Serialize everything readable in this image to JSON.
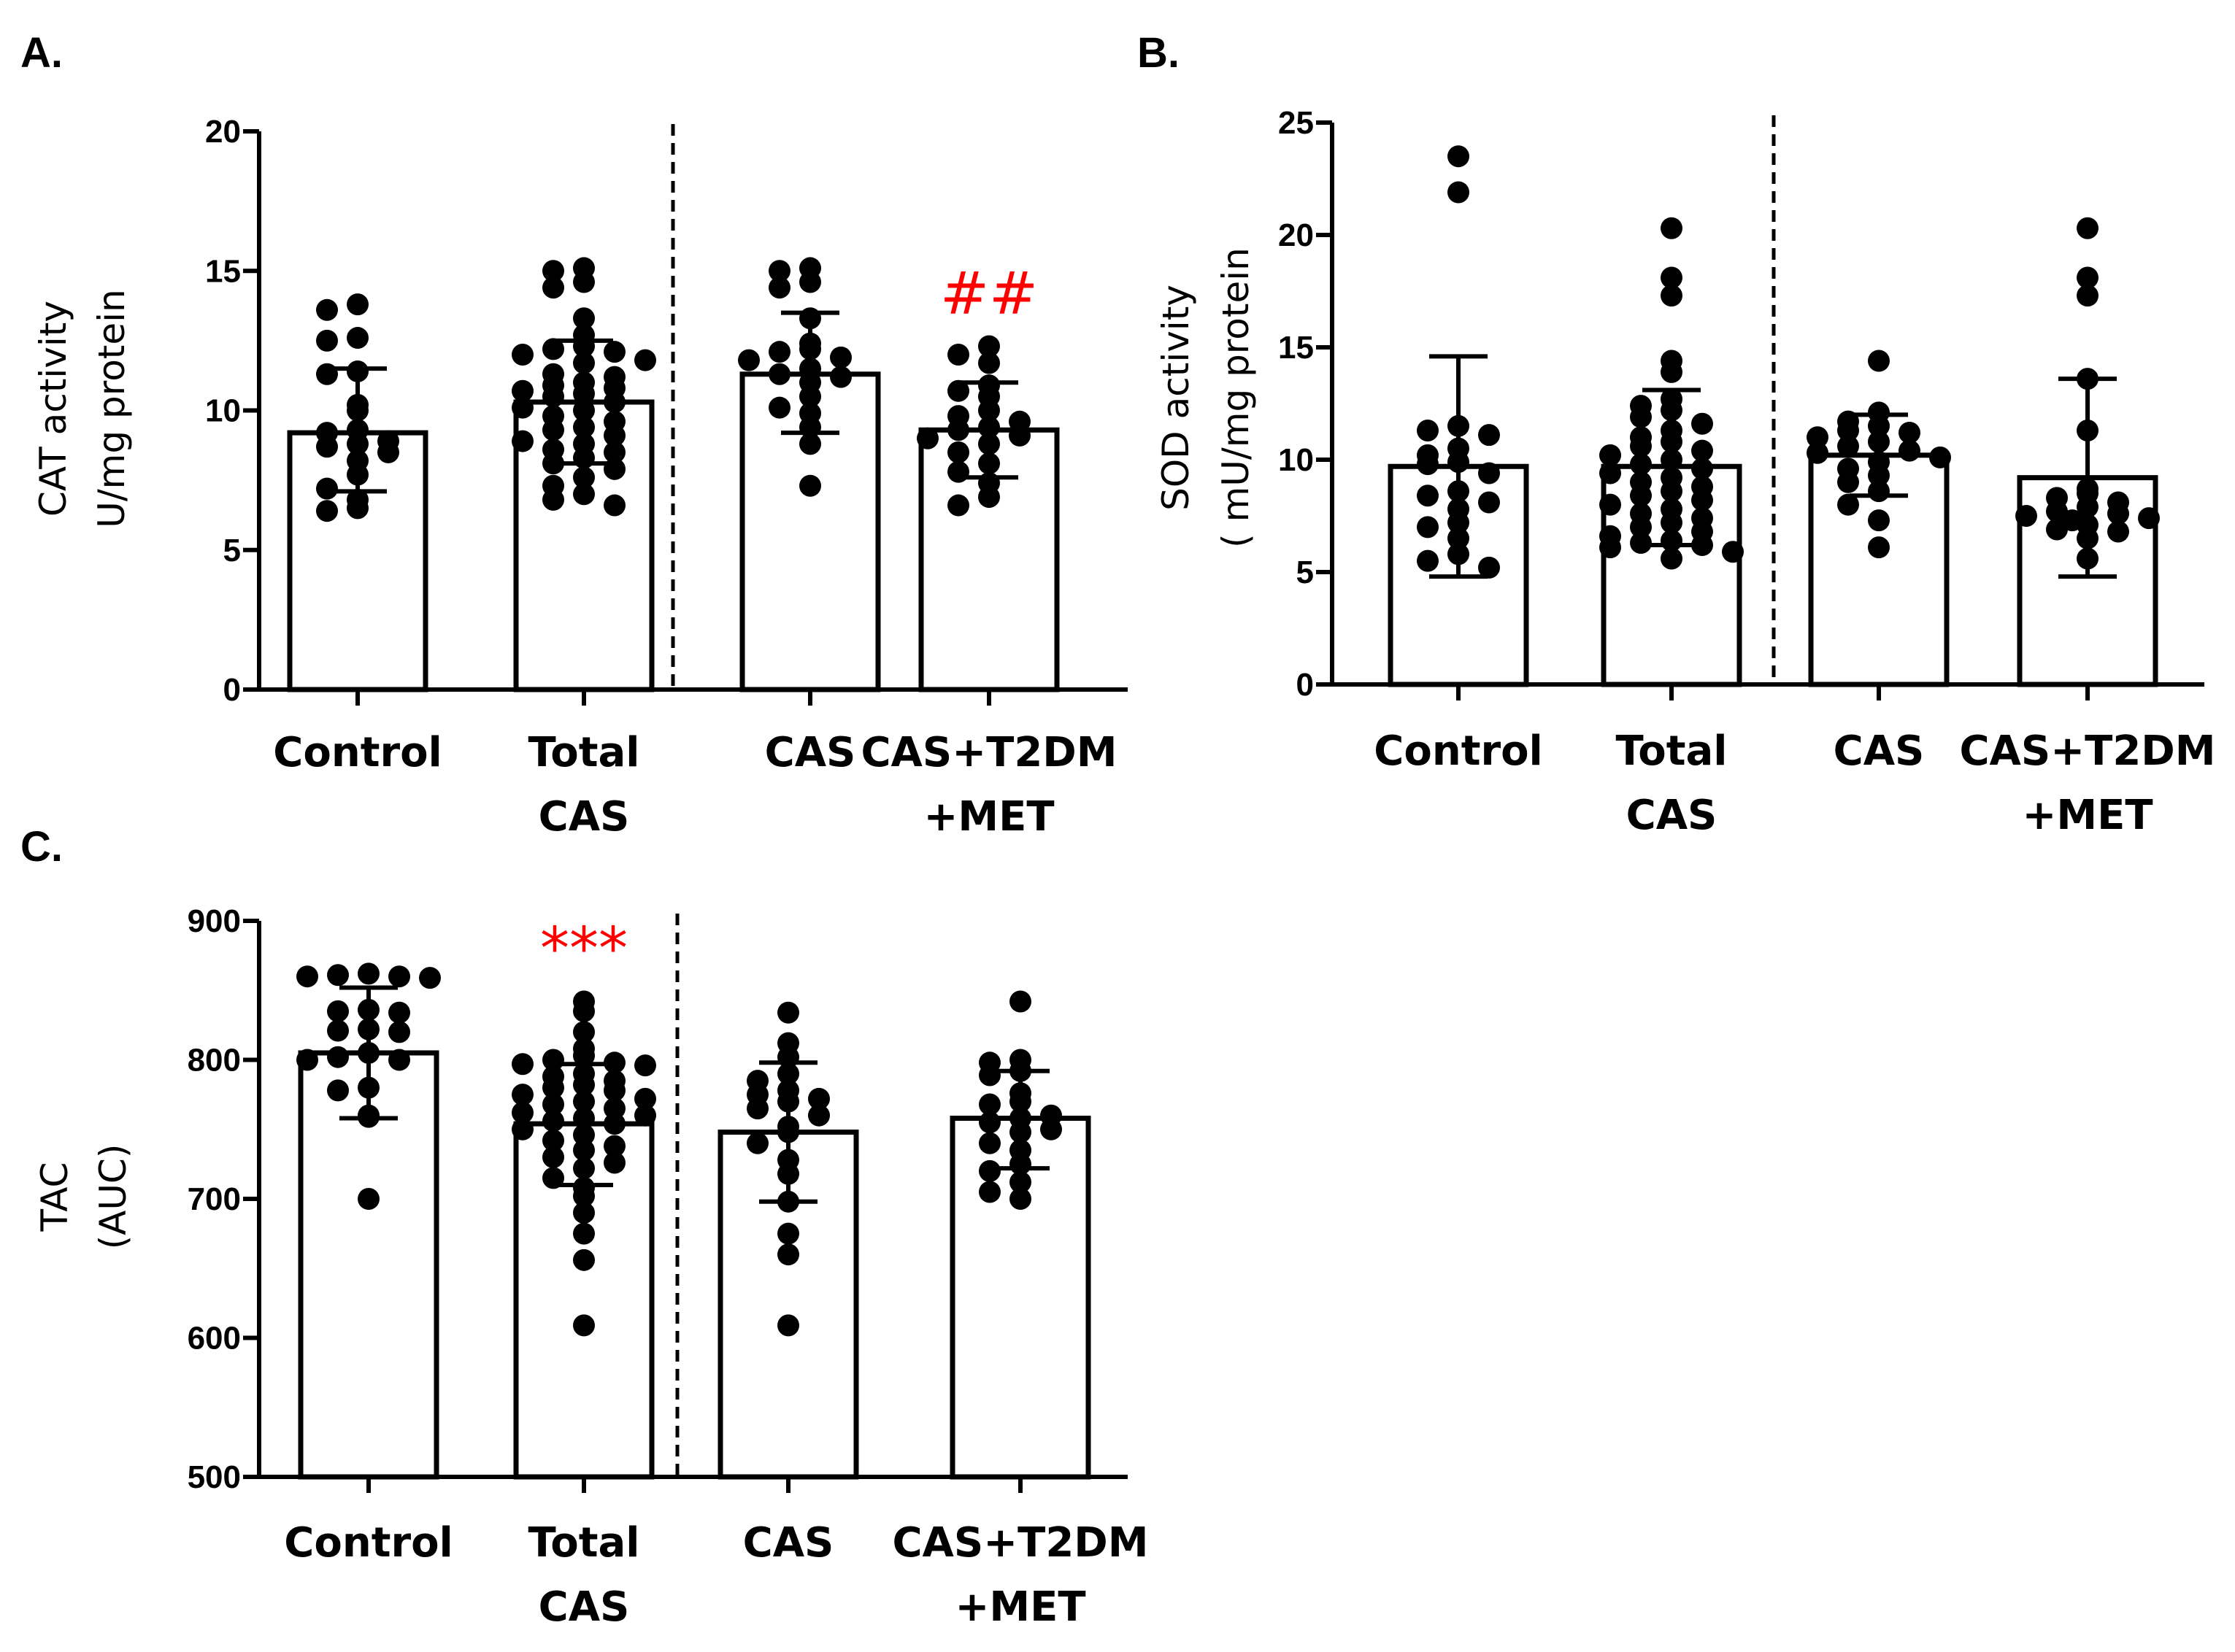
{
  "colors": {
    "bar_fill": "#ffffff",
    "ink": "#000000",
    "significance": "#ff0000"
  },
  "chart_data": [
    {
      "panel": "A.",
      "type": "bar",
      "categories": [
        "Control",
        "Total CAS",
        "CAS",
        "CAS+T2DM +MET"
      ],
      "category_lines": [
        [
          "Control"
        ],
        [
          "Total",
          "CAS"
        ],
        [
          "CAS"
        ],
        [
          "CAS+T2DM",
          "+MET"
        ]
      ],
      "ylabel_lines": [
        "CAT activity",
        "U/mg protein"
      ],
      "ylim": [
        0,
        20
      ],
      "yticks": [
        0,
        5,
        10,
        15,
        20
      ],
      "divider_after_category": 1,
      "bars": [
        {
          "mean": 9.2,
          "err_low": 7.1,
          "err_high": 11.5,
          "points": [
            13.8,
            13.6,
            12.6,
            12.5,
            11.4,
            11.3,
            10.2,
            10.0,
            9.3,
            9.2,
            8.9,
            8.8,
            8.7,
            8.5,
            8.2,
            7.7,
            7.2,
            6.8,
            6.5,
            6.4
          ]
        },
        {
          "mean": 10.3,
          "err_low": 8.1,
          "err_high": 12.5,
          "points": [
            15.1,
            15.0,
            14.6,
            14.4,
            13.3,
            12.7,
            12.3,
            12.2,
            12.1,
            12.0,
            11.8,
            11.7,
            11.3,
            11.2,
            11.0,
            10.9,
            10.8,
            10.7,
            10.6,
            10.5,
            10.3,
            10.1,
            10.0,
            9.8,
            9.6,
            9.4,
            9.3,
            9.1,
            8.9,
            8.8,
            8.6,
            8.5,
            8.3,
            8.1,
            7.9,
            7.6,
            7.3,
            7.0,
            6.8,
            6.6
          ]
        },
        {
          "mean": 11.3,
          "err_low": 9.2,
          "err_high": 13.5,
          "points": [
            15.1,
            15.0,
            14.6,
            14.4,
            13.3,
            12.4,
            12.2,
            12.1,
            11.9,
            11.8,
            11.5,
            11.3,
            11.2,
            11.0,
            10.5,
            10.1,
            9.9,
            9.4,
            8.8,
            7.3
          ]
        },
        {
          "mean": 9.3,
          "err_low": 7.6,
          "err_high": 11.0,
          "points": [
            12.3,
            12.0,
            11.7,
            10.9,
            10.7,
            10.5,
            10.0,
            9.8,
            9.6,
            9.4,
            9.3,
            9.1,
            9.0,
            8.8,
            8.5,
            8.1,
            7.8,
            7.4,
            6.9,
            6.6
          ]
        }
      ],
      "annotations": [
        {
          "category_index": 3,
          "text": "##"
        }
      ]
    },
    {
      "panel": "B.",
      "type": "bar",
      "categories": [
        "Control",
        "Total CAS",
        "CAS",
        "CAS+T2DM +MET"
      ],
      "category_lines": [
        [
          "Control"
        ],
        [
          "Total",
          "CAS"
        ],
        [
          "CAS"
        ],
        [
          "CAS+T2DM",
          "+MET"
        ]
      ],
      "ylabel_lines": [
        "SOD activity",
        "(  mU/mg protein"
      ],
      "ylim": [
        0,
        25
      ],
      "yticks": [
        0,
        5,
        10,
        15,
        20,
        25
      ],
      "divider_after_category": 1,
      "bars": [
        {
          "mean": 9.7,
          "err_low": 4.8,
          "err_high": 14.6,
          "points": [
            23.5,
            21.9,
            11.5,
            11.3,
            11.1,
            10.5,
            10.2,
            9.9,
            9.8,
            9.4,
            8.6,
            8.4,
            8.1,
            7.8,
            7.2,
            7.0,
            6.5,
            5.8,
            5.5,
            5.2
          ]
        },
        {
          "mean": 9.7,
          "err_low": 6.2,
          "err_high": 13.1,
          "points": [
            20.3,
            18.1,
            17.3,
            14.4,
            13.9,
            12.7,
            12.4,
            12.2,
            11.9,
            11.6,
            11.3,
            11.0,
            10.8,
            10.6,
            10.4,
            10.2,
            10.0,
            9.8,
            9.6,
            9.4,
            9.2,
            9.0,
            8.8,
            8.6,
            8.4,
            8.2,
            8.0,
            7.8,
            7.6,
            7.4,
            7.2,
            7.0,
            6.8,
            6.6,
            6.4,
            6.3,
            6.2,
            6.1,
            5.9,
            5.6
          ]
        },
        {
          "mean": 10.2,
          "err_low": 8.4,
          "err_high": 12.0,
          "points": [
            14.4,
            12.1,
            11.7,
            11.5,
            11.3,
            11.2,
            11.0,
            10.8,
            10.6,
            10.4,
            10.3,
            10.1,
            9.9,
            9.6,
            9.3,
            9.0,
            8.6,
            8.0,
            7.3,
            6.1
          ]
        },
        {
          "mean": 9.2,
          "err_low": 4.8,
          "err_high": 13.6,
          "points": [
            20.3,
            18.1,
            17.3,
            13.6,
            11.3,
            8.7,
            8.5,
            8.3,
            8.1,
            7.9,
            7.7,
            7.6,
            7.5,
            7.4,
            7.3,
            7.1,
            6.9,
            6.8,
            6.5,
            5.6
          ]
        }
      ],
      "annotations": []
    },
    {
      "panel": "C.",
      "type": "bar",
      "categories": [
        "Control",
        "Total CAS",
        "CAS",
        "CAS+T2DM +MET"
      ],
      "category_lines": [
        [
          "Control"
        ],
        [
          "Total",
          "CAS"
        ],
        [
          "CAS"
        ],
        [
          "CAS+T2DM",
          "+MET"
        ]
      ],
      "ylabel_lines": [
        "TAC",
        "(AUC)"
      ],
      "ylim": [
        500,
        900
      ],
      "yticks": [
        500,
        600,
        700,
        800,
        900
      ],
      "divider_after_category": 1,
      "bars": [
        {
          "mean": 805,
          "err_low": 758,
          "err_high": 852,
          "points": [
            862,
            861,
            860,
            860,
            859,
            836,
            835,
            834,
            822,
            821,
            820,
            805,
            802,
            800,
            800,
            780,
            778,
            760,
            759,
            700
          ]
        },
        {
          "mean": 754,
          "err_low": 710,
          "err_high": 797,
          "points": [
            842,
            835,
            820,
            808,
            803,
            800,
            798,
            797,
            796,
            790,
            788,
            785,
            782,
            780,
            778,
            775,
            772,
            770,
            768,
            765,
            762,
            760,
            758,
            756,
            754,
            750,
            746,
            742,
            738,
            735,
            730,
            726,
            722,
            715,
            708,
            702,
            690,
            675,
            656,
            609
          ]
        },
        {
          "mean": 748,
          "err_low": 698,
          "err_high": 798,
          "points": [
            834,
            812,
            802,
            790,
            785,
            778,
            775,
            772,
            770,
            765,
            760,
            752,
            748,
            740,
            728,
            718,
            698,
            675,
            660,
            609
          ]
        },
        {
          "mean": 758,
          "err_low": 722,
          "err_high": 792,
          "points": [
            842,
            800,
            798,
            792,
            789,
            776,
            770,
            768,
            760,
            758,
            755,
            750,
            748,
            740,
            735,
            725,
            720,
            712,
            705,
            700
          ]
        }
      ],
      "annotations": [
        {
          "category_index": 1,
          "text": "***"
        }
      ]
    }
  ]
}
